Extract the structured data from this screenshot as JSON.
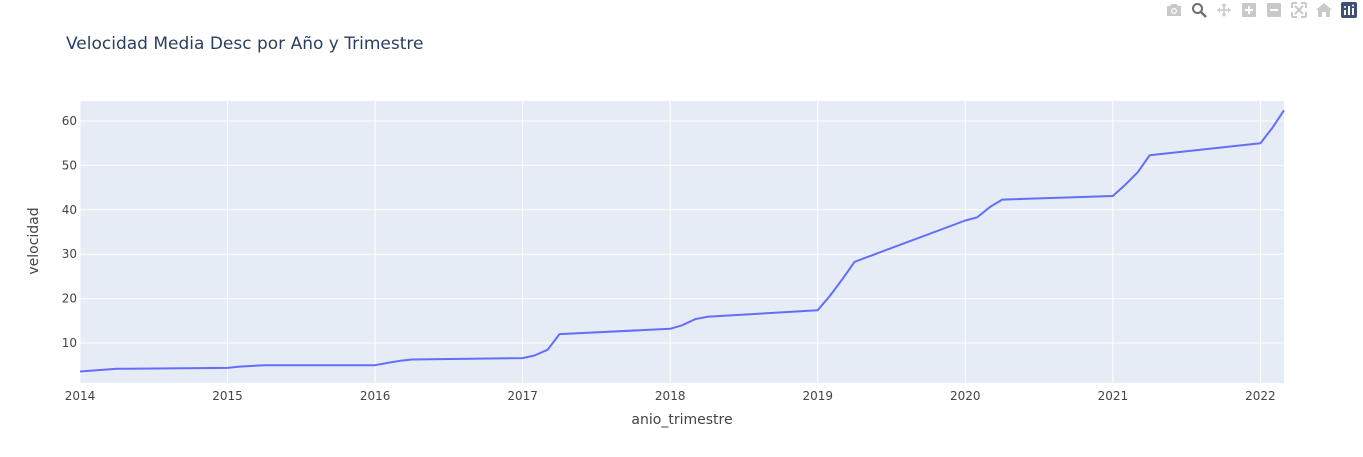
{
  "chart_data": {
    "type": "line",
    "title": "Velocidad Media Desc por Año y Trimestre",
    "xlabel": "anio_trimestre",
    "ylabel": "velocidad",
    "xlim": [
      2014.0,
      2022.16
    ],
    "ylim": [
      1.0,
      64.5
    ],
    "xticks": [
      "2014",
      "2015",
      "2016",
      "2017",
      "2018",
      "2019",
      "2020",
      "2021",
      "2022"
    ],
    "yticks": [
      "10",
      "20",
      "30",
      "40",
      "50",
      "60"
    ],
    "grid": true,
    "series": [
      {
        "color": "#636efa",
        "x": [
          2014.0,
          2014.08,
          2014.25,
          2015.0,
          2015.08,
          2015.25,
          2016.0,
          2016.08,
          2016.17,
          2016.25,
          2017.0,
          2017.08,
          2017.17,
          2017.25,
          2018.0,
          2018.08,
          2018.17,
          2018.25,
          2019.0,
          2019.08,
          2019.17,
          2019.25,
          2020.0,
          2020.08,
          2020.17,
          2020.25,
          2021.0,
          2021.08,
          2021.17,
          2021.25,
          2022.0,
          2022.08,
          2022.16
        ],
        "y": [
          3.6,
          3.8,
          4.2,
          4.4,
          4.7,
          5.0,
          5.0,
          5.5,
          6.0,
          6.3,
          6.6,
          7.2,
          8.5,
          12.0,
          13.2,
          14.0,
          15.4,
          15.9,
          17.4,
          20.5,
          24.5,
          28.3,
          37.6,
          38.3,
          40.7,
          42.3,
          43.1,
          45.5,
          48.5,
          52.3,
          55.0,
          58.4,
          62.4
        ]
      }
    ]
  },
  "modebar": {
    "buttons": [
      "camera-icon",
      "zoom-icon",
      "pan-icon",
      "zoom-in-icon",
      "zoom-out-icon",
      "autoscale-icon",
      "reset-axes-icon",
      "plotly-logo-icon"
    ]
  }
}
